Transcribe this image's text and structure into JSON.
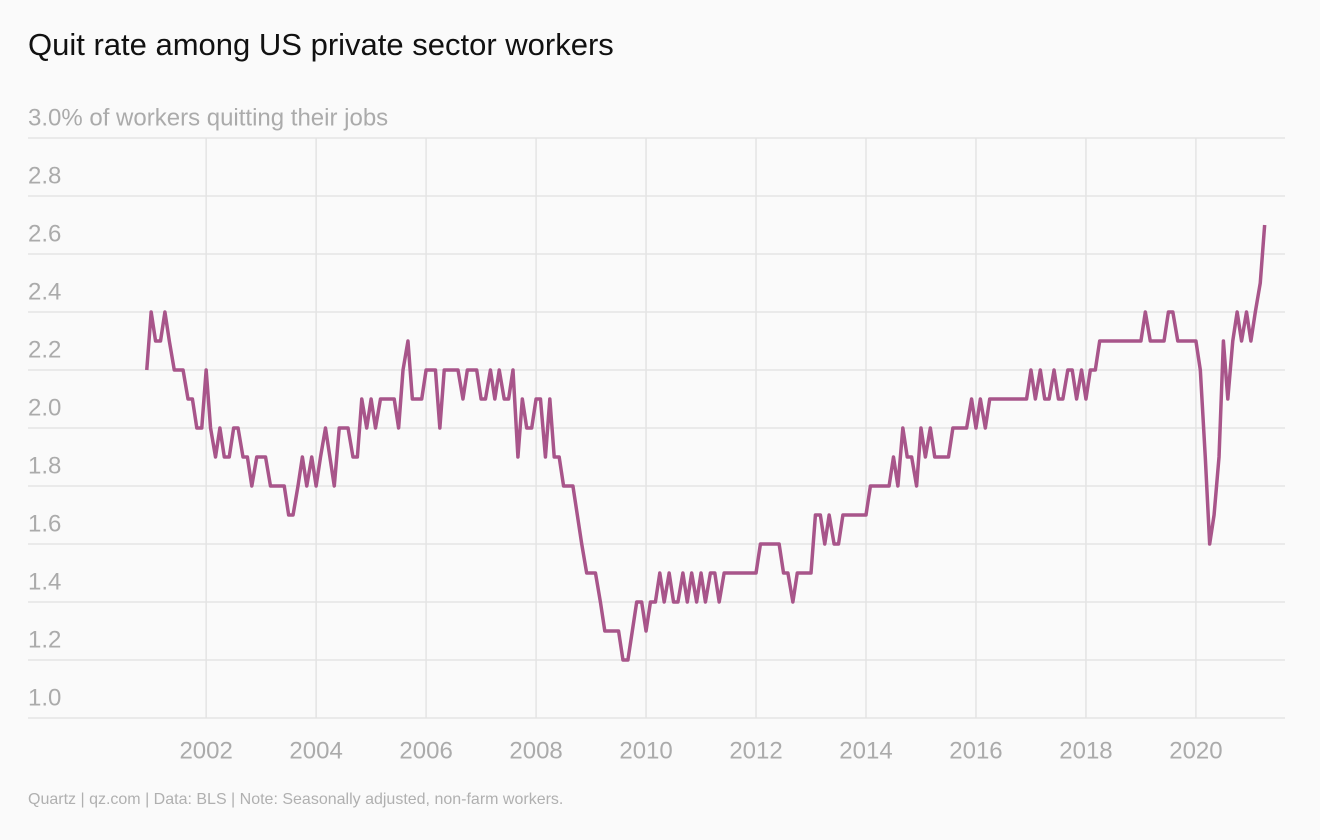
{
  "chart_data": {
    "type": "line",
    "title": "Quit rate among US private sector workers",
    "footer": "Quartz | qz.com | Data: BLS | Note: Seasonally adjusted, non-farm workers.",
    "x": [
      2000.92,
      2001,
      2001.08,
      2001.17,
      2001.25,
      2001.33,
      2001.42,
      2001.5,
      2001.58,
      2001.67,
      2001.75,
      2001.83,
      2001.92,
      2002,
      2002.08,
      2002.17,
      2002.25,
      2002.33,
      2002.42,
      2002.5,
      2002.58,
      2002.67,
      2002.75,
      2002.83,
      2002.92,
      2003,
      2003.08,
      2003.17,
      2003.25,
      2003.33,
      2003.42,
      2003.5,
      2003.58,
      2003.67,
      2003.75,
      2003.83,
      2003.92,
      2004,
      2004.08,
      2004.17,
      2004.25,
      2004.33,
      2004.42,
      2004.5,
      2004.58,
      2004.67,
      2004.75,
      2004.83,
      2004.92,
      2005,
      2005.08,
      2005.17,
      2005.25,
      2005.33,
      2005.42,
      2005.5,
      2005.58,
      2005.67,
      2005.75,
      2005.83,
      2005.92,
      2006,
      2006.08,
      2006.17,
      2006.25,
      2006.33,
      2006.42,
      2006.5,
      2006.58,
      2006.67,
      2006.75,
      2006.83,
      2006.92,
      2007,
      2007.08,
      2007.17,
      2007.25,
      2007.33,
      2007.42,
      2007.5,
      2007.58,
      2007.67,
      2007.75,
      2007.83,
      2007.92,
      2008,
      2008.08,
      2008.17,
      2008.25,
      2008.33,
      2008.42,
      2008.5,
      2008.58,
      2008.67,
      2008.75,
      2008.83,
      2008.92,
      2009,
      2009.08,
      2009.17,
      2009.25,
      2009.33,
      2009.42,
      2009.5,
      2009.58,
      2009.67,
      2009.75,
      2009.83,
      2009.92,
      2010,
      2010.08,
      2010.17,
      2010.25,
      2010.33,
      2010.42,
      2010.5,
      2010.58,
      2010.67,
      2010.75,
      2010.83,
      2010.92,
      2011,
      2011.08,
      2011.17,
      2011.25,
      2011.33,
      2011.42,
      2011.5,
      2011.58,
      2011.67,
      2011.75,
      2011.83,
      2011.92,
      2012,
      2012.08,
      2012.17,
      2012.25,
      2012.33,
      2012.42,
      2012.5,
      2012.58,
      2012.67,
      2012.75,
      2012.83,
      2012.92,
      2013,
      2013.08,
      2013.17,
      2013.25,
      2013.33,
      2013.42,
      2013.5,
      2013.58,
      2013.67,
      2013.75,
      2013.83,
      2013.92,
      2014,
      2014.08,
      2014.17,
      2014.25,
      2014.33,
      2014.42,
      2014.5,
      2014.58,
      2014.67,
      2014.75,
      2014.83,
      2014.92,
      2015,
      2015.08,
      2015.17,
      2015.25,
      2015.33,
      2015.42,
      2015.5,
      2015.58,
      2015.67,
      2015.75,
      2015.83,
      2015.92,
      2016,
      2016.08,
      2016.17,
      2016.25,
      2016.33,
      2016.42,
      2016.5,
      2016.58,
      2016.67,
      2016.75,
      2016.83,
      2016.92,
      2017,
      2017.08,
      2017.17,
      2017.25,
      2017.33,
      2017.42,
      2017.5,
      2017.58,
      2017.67,
      2017.75,
      2017.83,
      2017.92,
      2018,
      2018.08,
      2018.17,
      2018.25,
      2018.33,
      2018.42,
      2018.5,
      2018.58,
      2018.67,
      2018.75,
      2018.83,
      2018.92,
      2019,
      2019.08,
      2019.17,
      2019.25,
      2019.33,
      2019.42,
      2019.5,
      2019.58,
      2019.67,
      2019.75,
      2019.83,
      2019.92,
      2020,
      2020.08,
      2020.17,
      2020.25,
      2020.33,
      2020.42,
      2020.5,
      2020.58,
      2020.67,
      2020.75,
      2020.83,
      2020.92,
      2021,
      2021.08,
      2021.17,
      2021.25
    ],
    "series": [
      {
        "name": "Quit rate",
        "color": "#a8558a",
        "values": [
          2.2,
          2.4,
          2.3,
          2.3,
          2.4,
          2.3,
          2.2,
          2.2,
          2.2,
          2.1,
          2.1,
          2.0,
          2.0,
          2.2,
          2.0,
          1.9,
          2.0,
          1.9,
          1.9,
          2.0,
          2.0,
          1.9,
          1.9,
          1.8,
          1.9,
          1.9,
          1.9,
          1.8,
          1.8,
          1.8,
          1.8,
          1.7,
          1.7,
          1.8,
          1.9,
          1.8,
          1.9,
          1.8,
          1.9,
          2.0,
          1.9,
          1.8,
          2.0,
          2.0,
          2.0,
          1.9,
          1.9,
          2.1,
          2.0,
          2.1,
          2.0,
          2.1,
          2.1,
          2.1,
          2.1,
          2.0,
          2.2,
          2.3,
          2.1,
          2.1,
          2.1,
          2.2,
          2.2,
          2.2,
          2.0,
          2.2,
          2.2,
          2.2,
          2.2,
          2.1,
          2.2,
          2.2,
          2.2,
          2.1,
          2.1,
          2.2,
          2.1,
          2.2,
          2.1,
          2.1,
          2.2,
          1.9,
          2.1,
          2.0,
          2.0,
          2.1,
          2.1,
          1.9,
          2.1,
          1.9,
          1.9,
          1.8,
          1.8,
          1.8,
          1.7,
          1.6,
          1.5,
          1.5,
          1.5,
          1.4,
          1.3,
          1.3,
          1.3,
          1.3,
          1.2,
          1.2,
          1.3,
          1.4,
          1.4,
          1.3,
          1.4,
          1.4,
          1.5,
          1.4,
          1.5,
          1.4,
          1.4,
          1.5,
          1.4,
          1.5,
          1.4,
          1.5,
          1.4,
          1.5,
          1.5,
          1.4,
          1.5,
          1.5,
          1.5,
          1.5,
          1.5,
          1.5,
          1.5,
          1.5,
          1.6,
          1.6,
          1.6,
          1.6,
          1.6,
          1.5,
          1.5,
          1.4,
          1.5,
          1.5,
          1.5,
          1.5,
          1.7,
          1.7,
          1.6,
          1.7,
          1.6,
          1.6,
          1.7,
          1.7,
          1.7,
          1.7,
          1.7,
          1.7,
          1.8,
          1.8,
          1.8,
          1.8,
          1.8,
          1.9,
          1.8,
          2.0,
          1.9,
          1.9,
          1.8,
          2.0,
          1.9,
          2.0,
          1.9,
          1.9,
          1.9,
          1.9,
          2.0,
          2.0,
          2.0,
          2.0,
          2.1,
          2.0,
          2.1,
          2.0,
          2.1,
          2.1,
          2.1,
          2.1,
          2.1,
          2.1,
          2.1,
          2.1,
          2.1,
          2.2,
          2.1,
          2.2,
          2.1,
          2.1,
          2.2,
          2.1,
          2.1,
          2.2,
          2.2,
          2.1,
          2.2,
          2.1,
          2.2,
          2.2,
          2.3,
          2.3,
          2.3,
          2.3,
          2.3,
          2.3,
          2.3,
          2.3,
          2.3,
          2.3,
          2.4,
          2.3,
          2.3,
          2.3,
          2.3,
          2.4,
          2.4,
          2.3,
          2.3,
          2.3,
          2.3,
          2.3,
          2.2,
          1.9,
          1.6,
          1.7,
          1.9,
          2.3,
          2.1,
          2.3,
          2.4,
          2.3,
          2.4,
          2.3,
          2.4,
          2.5,
          2.7
        ]
      }
    ],
    "xlim": [
      1998.76,
      2021.62
    ],
    "xticks": [
      2002,
      2004,
      2006,
      2008,
      2010,
      2012,
      2014,
      2016,
      2018,
      2020
    ],
    "ylim": [
      1.0,
      3.0
    ],
    "yticks": [
      {
        "value": 1,
        "label": "1.0"
      },
      1.2,
      1.4,
      1.6,
      1.8,
      {
        "value": 2,
        "label": "2.0"
      },
      2.2,
      2.4,
      2.6,
      2.8,
      {
        "value": 3,
        "label": "3.0% of workers quitting their jobs"
      }
    ],
    "grid": true
  }
}
